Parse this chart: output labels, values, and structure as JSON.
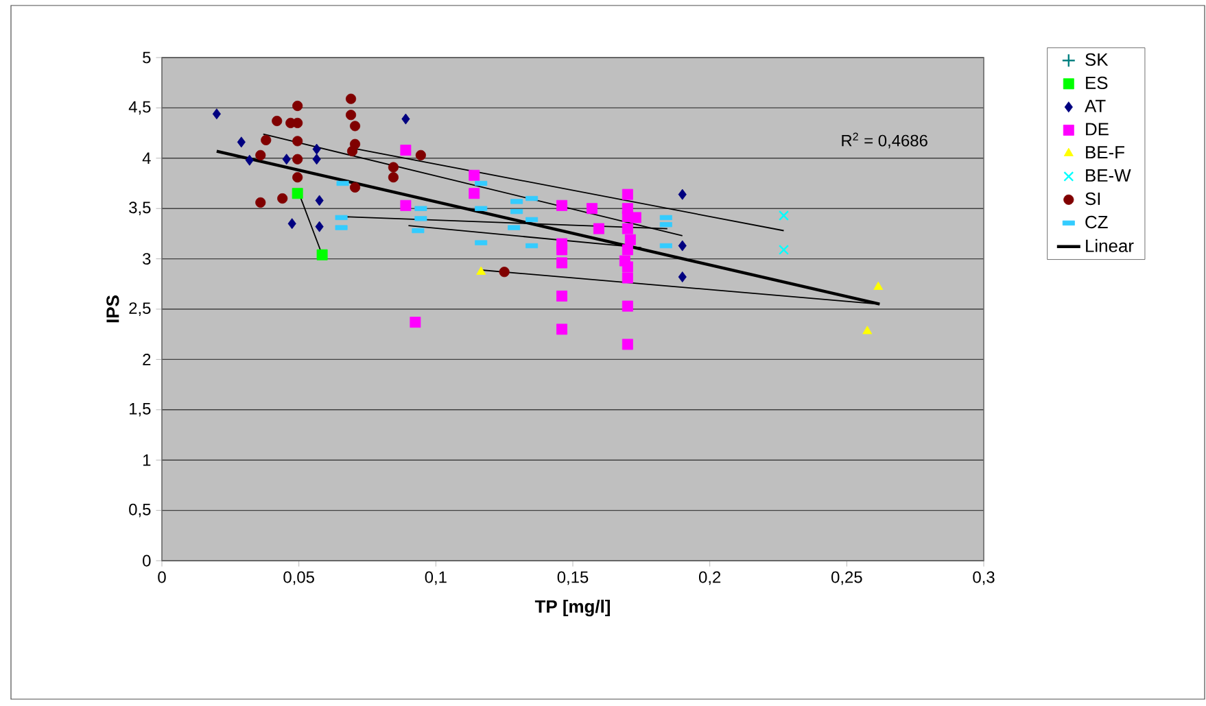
{
  "chart_data": {
    "type": "scatter",
    "xlabel": "TP [mg/l]",
    "ylabel": "IPS",
    "xlim": [
      0,
      0.3
    ],
    "ylim": [
      0,
      5
    ],
    "xticks": [
      0,
      {
        "value": 0.05,
        "label": "0,05"
      },
      {
        "value": 0.1,
        "label": "0,1"
      },
      {
        "value": 0.15,
        "label": "0,15"
      },
      {
        "value": 0.2,
        "label": "0,2"
      },
      {
        "value": 0.25,
        "label": "0,25"
      },
      {
        "value": 0.3,
        "label": "0,3"
      }
    ],
    "yticks": [
      0,
      {
        "value": 0.5,
        "label": "0,5"
      },
      1,
      {
        "value": 1.5,
        "label": "1,5"
      },
      2,
      {
        "value": 2.5,
        "label": "2,5"
      },
      3,
      {
        "value": 3.5,
        "label": "3,5"
      },
      4,
      {
        "value": 4.5,
        "label": "4,5"
      },
      5
    ],
    "grid": "y",
    "legend": "right",
    "annotations": [
      "R$^{2}$ = 0,4686"
    ],
    "series": [
      {
        "name": "SK",
        "marker": "plus",
        "color": "#008080"
      },
      {
        "name": "ES",
        "marker": "square",
        "color": "#00ff00",
        "x": [
          0.0495,
          0.0585
        ],
        "values": [
          3.65,
          3.04
        ]
      },
      {
        "name": "AT",
        "marker": "diamond",
        "color": "#000080",
        "x": [
          0.02,
          0.029,
          0.032,
          0.0455,
          0.0565,
          0.0565,
          0.0575,
          0.0475,
          0.0575,
          0.089,
          0.19,
          0.19,
          0.19
        ],
        "values": [
          4.44,
          4.16,
          3.98,
          3.99,
          4.09,
          3.99,
          3.58,
          3.35,
          3.32,
          4.39,
          3.64,
          3.13,
          2.82
        ]
      },
      {
        "name": "DE",
        "marker": "square",
        "color": "#ff00ff",
        "x": [
          0.089,
          0.089,
          0.0925,
          0.114,
          0.114,
          0.146,
          0.146,
          0.146,
          0.146,
          0.146,
          0.146,
          0.157,
          0.1595,
          0.17,
          0.17,
          0.17,
          0.173,
          0.17,
          0.171,
          0.17,
          0.169,
          0.17,
          0.17,
          0.17,
          0.17
        ],
        "values": [
          4.08,
          3.53,
          2.37,
          3.83,
          3.65,
          3.53,
          3.15,
          3.09,
          2.96,
          2.63,
          2.3,
          3.5,
          3.3,
          3.64,
          3.5,
          3.42,
          3.41,
          3.3,
          3.19,
          3.09,
          2.98,
          2.92,
          2.81,
          2.53,
          2.15
        ]
      },
      {
        "name": "BE-F",
        "marker": "triangle",
        "color": "#ffff00",
        "x": [
          0.1165,
          0.2615,
          0.2575
        ],
        "values": [
          2.87,
          2.72,
          2.28
        ]
      },
      {
        "name": "BE-W",
        "marker": "cross",
        "color": "#00ffff",
        "x": [
          0.227,
          0.227
        ],
        "values": [
          3.43,
          3.09
        ]
      },
      {
        "name": "SI",
        "marker": "circle",
        "color": "#800000",
        "x": [
          0.0495,
          0.042,
          0.047,
          0.0495,
          0.038,
          0.0495,
          0.036,
          0.0495,
          0.0495,
          0.036,
          0.044,
          0.069,
          0.069,
          0.0705,
          0.0705,
          0.0695,
          0.0705,
          0.0845,
          0.0845,
          0.0945,
          0.125
        ],
        "values": [
          4.52,
          4.37,
          4.35,
          4.35,
          4.18,
          4.17,
          4.03,
          3.99,
          3.81,
          3.56,
          3.6,
          4.59,
          4.43,
          4.32,
          4.14,
          4.07,
          3.71,
          3.91,
          3.81,
          4.03,
          2.87
        ]
      },
      {
        "name": "CZ",
        "color": "#33ccff",
        "x": [
          0.066,
          0.0655,
          0.0655,
          0.0945,
          0.0945,
          0.0935,
          0.1165,
          0.1165,
          0.1165,
          0.1295,
          0.135,
          0.1295,
          0.135,
          0.1285,
          0.135,
          0.184,
          0.184,
          0.184
        ],
        "values": [
          3.75,
          3.41,
          3.31,
          3.5,
          3.4,
          3.28,
          3.75,
          3.5,
          3.16,
          3.57,
          3.6,
          3.47,
          3.39,
          3.31,
          3.13,
          3.41,
          3.34,
          3.13
        ]
      },
      {
        "type": "line",
        "color": "#000000",
        "x": [
          0.0495,
          0.0585
        ],
        "values": [
          3.69,
          3.04
        ]
      },
      {
        "type": "line",
        "color": "#000000",
        "x": [
          0.0695,
          0.227
        ],
        "values": [
          4.1,
          3.28
        ]
      },
      {
        "type": "line",
        "color": "#000000",
        "x": [
          0.037,
          0.19
        ],
        "values": [
          4.24,
          3.23
        ]
      },
      {
        "type": "line",
        "color": "#000000",
        "x": [
          0.065,
          0.1845
        ],
        "values": [
          3.42,
          3.3
        ]
      },
      {
        "type": "line",
        "color": "#000000",
        "x": [
          0.09,
          0.175
        ],
        "values": [
          3.33,
          3.11
        ]
      },
      {
        "type": "line",
        "color": "#000000",
        "x": [
          0.116,
          0.262
        ],
        "values": [
          2.89,
          2.55
        ]
      },
      {
        "name": "Linear",
        "type": "line",
        "color": "#000000",
        "x": [
          0.02,
          0.262
        ],
        "values": [
          4.07,
          2.55
        ]
      }
    ]
  }
}
